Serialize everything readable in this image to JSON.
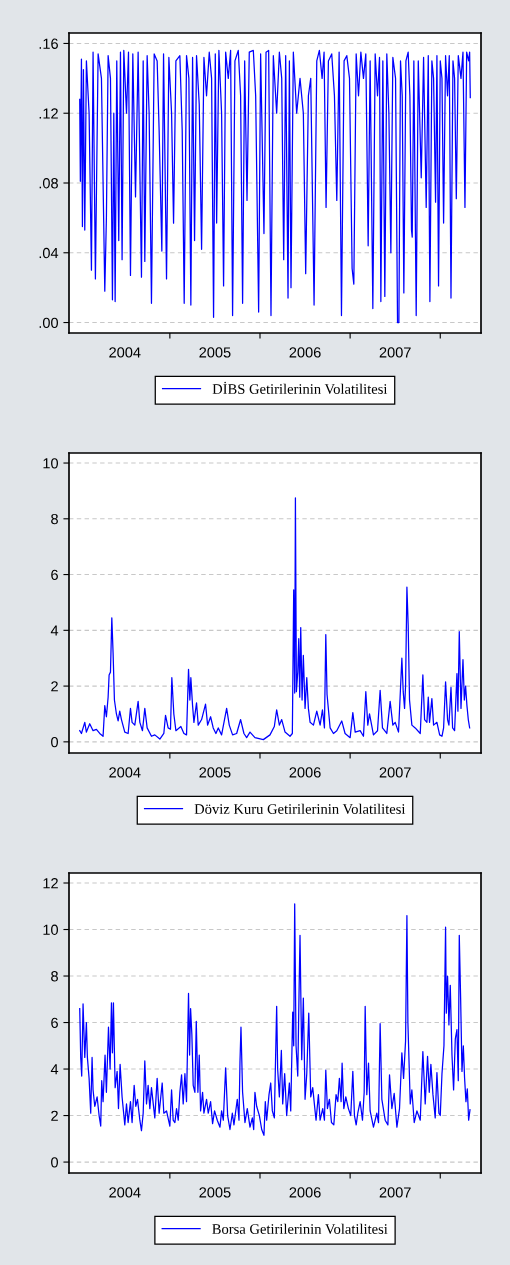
{
  "chart_data": [
    {
      "type": "line",
      "xlim": [
        2003.881,
        2008.452
      ],
      "ylim": [
        -0.006,
        0.166
      ],
      "yticks": [
        {
          "value": 0,
          "label": ".00"
        },
        {
          "value": 0.04,
          "label": ".04"
        },
        {
          "value": 0.08,
          "label": ".08"
        },
        {
          "value": 0.12,
          "label": ".12"
        },
        {
          "value": 0.16,
          "label": ".16"
        }
      ],
      "xticks": [
        {
          "value": 2004.5,
          "label": "2004"
        },
        {
          "value": 2005,
          "label": null
        },
        {
          "value": 2005.5,
          "label": "2005"
        },
        {
          "value": 2006,
          "label": null
        },
        {
          "value": 2006.5,
          "label": "2006"
        },
        {
          "value": 2007,
          "label": null
        },
        {
          "value": 2007.5,
          "label": "2007"
        },
        {
          "value": 2008,
          "label": null
        }
      ],
      "grid": "y",
      "legend": "bottom",
      "series": [
        {
          "name": "DİBS Getirilerinin Volatilitesi",
          "color": "#0000ff",
          "x": [
            2004.0,
            2004.007,
            2004.019,
            2004.03,
            2004.041,
            2004.056,
            2004.074,
            2004.104,
            2004.13,
            2004.148,
            2004.174,
            2004.204,
            2004.241,
            2004.278,
            2004.296,
            2004.315,
            2004.341,
            2004.363,
            2004.378,
            2004.393,
            2004.411,
            2004.433,
            2004.452,
            2004.47,
            2004.489,
            2004.519,
            2004.541,
            2004.563,
            2004.589,
            2004.619,
            2004.648,
            2004.685,
            2004.704,
            2004.722,
            2004.748,
            2004.77,
            2004.796,
            2004.826,
            2004.859,
            2004.881,
            2004.911,
            2004.93,
            2004.963,
            2004.989,
            2005.019,
            2005.041,
            2005.067,
            2005.111,
            2005.137,
            2005.159,
            2005.185,
            2005.211,
            2005.233,
            2005.252,
            2005.274,
            2005.296,
            2005.326,
            2005.352,
            2005.378,
            2005.407,
            2005.437,
            2005.463,
            2005.485,
            2005.504,
            2005.519,
            2005.544,
            2005.574,
            2005.596,
            2005.619,
            2005.648,
            2005.674,
            2005.696,
            2005.722,
            2005.759,
            2005.785,
            2005.807,
            2005.83,
            2005.856,
            2005.881,
            2005.926,
            2005.952,
            2005.985,
            2006.007,
            2006.044,
            2006.067,
            2006.096,
            2006.122,
            2006.148,
            2006.185,
            2006.215,
            2006.241,
            2006.263,
            2006.285,
            2006.311,
            2006.326,
            2006.344,
            2006.37,
            2006.407,
            2006.444,
            2006.481,
            2006.507,
            2006.537,
            2006.563,
            2006.6,
            2006.63,
            2006.659,
            2006.689,
            2006.711,
            2006.733,
            2006.759,
            2006.796,
            2006.826,
            2006.852,
            2006.878,
            2006.904,
            2006.933,
            2006.963,
            2006.993,
            2007.022,
            2007.041,
            2007.067,
            2007.093,
            2007.119,
            2007.148,
            2007.174,
            2007.2,
            2007.222,
            2007.252,
            2007.278,
            2007.304,
            2007.326,
            2007.341,
            2007.363,
            2007.385,
            2007.407,
            2007.43,
            2007.452,
            2007.474,
            2007.504,
            2007.526,
            2007.541,
            2007.559,
            2007.578,
            2007.596,
            2007.619,
            2007.644,
            2007.663,
            2007.681,
            2007.689,
            2007.707,
            2007.733,
            2007.756,
            2007.789,
            2007.815,
            2007.844,
            2007.867,
            2007.885,
            2007.907,
            2007.926,
            2007.948,
            2007.963,
            2007.981,
            2008.0,
            2008.019,
            2008.037,
            2008.059,
            2008.081,
            2008.1,
            2008.119,
            2008.141,
            2008.159,
            2008.178,
            2008.2,
            2008.23,
            2008.252,
            2008.274,
            2008.293,
            2008.315,
            2008.326,
            2008.333
          ],
          "values": [
            0.128,
            0.081,
            0.151,
            0.055,
            0.145,
            0.053,
            0.15,
            0.12,
            0.03,
            0.155,
            0.025,
            0.154,
            0.14,
            0.018,
            0.06,
            0.153,
            0.14,
            0.013,
            0.12,
            0.012,
            0.15,
            0.047,
            0.155,
            0.036,
            0.156,
            0.12,
            0.155,
            0.027,
            0.154,
            0.072,
            0.155,
            0.026,
            0.15,
            0.035,
            0.153,
            0.12,
            0.011,
            0.154,
            0.15,
            0.11,
            0.041,
            0.154,
            0.025,
            0.152,
            0.12,
            0.057,
            0.15,
            0.153,
            0.11,
            0.011,
            0.153,
            0.14,
            0.01,
            0.152,
            0.047,
            0.153,
            0.125,
            0.042,
            0.152,
            0.13,
            0.155,
            0.14,
            0.003,
            0.154,
            0.057,
            0.156,
            0.12,
            0.021,
            0.155,
            0.14,
            0.156,
            0.004,
            0.15,
            0.156,
            0.13,
            0.011,
            0.15,
            0.07,
            0.155,
            0.156,
            0.13,
            0.006,
            0.154,
            0.051,
            0.155,
            0.156,
            0.004,
            0.153,
            0.12,
            0.155,
            0.14,
            0.036,
            0.153,
            0.014,
            0.15,
            0.02,
            0.155,
            0.12,
            0.14,
            0.12,
            0.028,
            0.13,
            0.14,
            0.01,
            0.15,
            0.156,
            0.14,
            0.155,
            0.066,
            0.15,
            0.154,
            0.13,
            0.07,
            0.155,
            0.004,
            0.15,
            0.153,
            0.14,
            0.031,
            0.022,
            0.154,
            0.13,
            0.155,
            0.14,
            0.154,
            0.044,
            0.15,
            0.008,
            0.154,
            0.13,
            0.152,
            0.012,
            0.15,
            0.015,
            0.154,
            0.12,
            0.04,
            0.152,
            0.14,
            0.0,
            0.0,
            0.15,
            0.13,
            0.017,
            0.15,
            0.155,
            0.13,
            0.053,
            0.049,
            0.15,
            0.004,
            0.15,
            0.083,
            0.152,
            0.066,
            0.153,
            0.012,
            0.15,
            0.14,
            0.069,
            0.153,
            0.021,
            0.15,
            0.14,
            0.057,
            0.153,
            0.13,
            0.153,
            0.014,
            0.15,
            0.14,
            0.071,
            0.153,
            0.14,
            0.155,
            0.066,
            0.155,
            0.15,
            0.155,
            0.129
          ]
        }
      ]
    },
    {
      "type": "line",
      "xlim": [
        2003.881,
        2008.452
      ],
      "ylim": [
        -0.4,
        10.36
      ],
      "yticks": [
        0,
        2,
        4,
        6,
        8,
        10
      ],
      "xticks": [
        {
          "value": 2004.5,
          "label": "2004"
        },
        {
          "value": 2005,
          "label": null
        },
        {
          "value": 2005.5,
          "label": "2005"
        },
        {
          "value": 2006,
          "label": null
        },
        {
          "value": 2006.5,
          "label": "2006"
        },
        {
          "value": 2007,
          "label": null
        },
        {
          "value": 2007.5,
          "label": "2007"
        },
        {
          "value": 2008,
          "label": null
        }
      ],
      "grid": "y",
      "legend": "bottom",
      "series": [
        {
          "name": "Döviz Kuru Getirilerinin Volatilitesi",
          "color": "#0000ff",
          "x": [
            2004.0,
            2004.019,
            2004.056,
            2004.074,
            2004.111,
            2004.148,
            2004.185,
            2004.222,
            2004.259,
            2004.278,
            2004.296,
            2004.315,
            2004.326,
            2004.341,
            2004.356,
            2004.37,
            2004.385,
            2004.407,
            2004.426,
            2004.444,
            2004.463,
            2004.5,
            2004.537,
            2004.563,
            2004.581,
            2004.611,
            2004.648,
            2004.667,
            2004.696,
            2004.722,
            2004.748,
            2004.796,
            2004.833,
            2004.889,
            2004.933,
            2004.952,
            2004.981,
            2005.007,
            2005.022,
            2005.044,
            2005.067,
            2005.122,
            2005.156,
            2005.185,
            2005.207,
            2005.222,
            2005.233,
            2005.252,
            2005.267,
            2005.296,
            2005.315,
            2005.352,
            2005.396,
            2005.419,
            2005.452,
            2005.481,
            2005.511,
            2005.537,
            2005.574,
            2005.63,
            2005.659,
            2005.696,
            2005.741,
            2005.785,
            2005.822,
            2005.852,
            2005.889,
            2005.944,
            2006.037,
            2006.111,
            2006.159,
            2006.185,
            2006.215,
            2006.241,
            2006.278,
            2006.333,
            2006.359,
            2006.374,
            2006.385,
            2006.393,
            2006.404,
            2006.419,
            2006.43,
            2006.441,
            2006.452,
            2006.467,
            2006.481,
            2006.5,
            2006.519,
            2006.537,
            2006.556,
            2006.593,
            2006.63,
            2006.667,
            2006.693,
            2006.715,
            2006.73,
            2006.744,
            2006.778,
            2006.815,
            2006.852,
            2006.907,
            2006.944,
            2007.0,
            2007.03,
            2007.056,
            2007.111,
            2007.148,
            2007.174,
            2007.196,
            2007.215,
            2007.259,
            2007.304,
            2007.333,
            2007.359,
            2007.407,
            2007.444,
            2007.474,
            2007.5,
            2007.537,
            2007.574,
            2007.589,
            2007.604,
            2007.615,
            2007.63,
            2007.644,
            2007.659,
            2007.685,
            2007.722,
            2007.778,
            2007.807,
            2007.826,
            2007.852,
            2007.867,
            2007.881,
            2007.907,
            2007.926,
            2007.963,
            2007.993,
            2008.019,
            2008.037,
            2008.059,
            2008.081,
            2008.096,
            2008.119,
            2008.137,
            2008.159,
            2008.185,
            2008.196,
            2008.211,
            2008.23,
            2008.252,
            2008.267,
            2008.281,
            2008.296,
            2008.311,
            2008.326
          ],
          "values": [
            0.4,
            0.3,
            0.7,
            0.35,
            0.65,
            0.4,
            0.45,
            0.3,
            0.2,
            1.3,
            0.9,
            1.6,
            2.4,
            2.5,
            4.45,
            3.2,
            1.5,
            1.0,
            0.75,
            1.1,
            0.8,
            0.35,
            0.3,
            1.2,
            0.7,
            0.6,
            1.45,
            0.7,
            0.4,
            1.2,
            0.5,
            0.2,
            0.25,
            0.1,
            0.3,
            0.95,
            0.5,
            0.45,
            2.3,
            1.0,
            0.4,
            0.55,
            0.3,
            0.25,
            2.6,
            1.5,
            2.3,
            1.3,
            0.7,
            1.4,
            0.6,
            0.8,
            1.35,
            0.6,
            0.9,
            0.5,
            0.3,
            0.5,
            0.25,
            1.2,
            0.6,
            0.25,
            0.3,
            0.8,
            0.3,
            0.15,
            0.35,
            0.15,
            0.08,
            0.25,
            0.55,
            1.15,
            0.6,
            0.8,
            0.35,
            0.2,
            0.3,
            5.45,
            1.75,
            8.75,
            1.8,
            2.5,
            3.7,
            1.6,
            4.1,
            1.5,
            3.1,
            1.2,
            2.3,
            1.2,
            0.7,
            0.6,
            1.1,
            0.6,
            1.15,
            0.5,
            3.85,
            1.7,
            0.5,
            0.3,
            0.4,
            0.75,
            0.3,
            0.15,
            1.05,
            0.35,
            0.4,
            0.2,
            1.8,
            0.6,
            1.0,
            0.25,
            0.4,
            1.85,
            0.5,
            0.3,
            1.45,
            0.6,
            0.7,
            0.35,
            3.0,
            1.8,
            1.2,
            2.0,
            5.55,
            4.2,
            1.5,
            0.6,
            0.5,
            0.3,
            2.4,
            0.8,
            0.7,
            1.6,
            0.7,
            1.55,
            0.6,
            0.7,
            0.25,
            0.2,
            0.5,
            2.15,
            0.8,
            0.6,
            1.95,
            0.5,
            0.4,
            2.45,
            1.1,
            3.95,
            1.2,
            2.95,
            1.5,
            2.0,
            1.3,
            0.8,
            0.5
          ]
        }
      ]
    },
    {
      "type": "line",
      "xlim": [
        2003.881,
        2008.452
      ],
      "ylim": [
        -0.47,
        12.43
      ],
      "yticks": [
        0,
        2,
        4,
        6,
        8,
        10,
        12
      ],
      "xticks": [
        {
          "value": 2004.5,
          "label": "2004"
        },
        {
          "value": 2005,
          "label": null
        },
        {
          "value": 2005.5,
          "label": "2005"
        },
        {
          "value": 2006,
          "label": null
        },
        {
          "value": 2006.5,
          "label": "2006"
        },
        {
          "value": 2007,
          "label": null
        },
        {
          "value": 2007.5,
          "label": "2007"
        },
        {
          "value": 2008,
          "label": null
        }
      ],
      "grid": "y",
      "legend": "bottom",
      "series": [
        {
          "name": "Borsa Getirilerinin Volatilitesi",
          "color": "#0000ff",
          "x": [
            2004.0,
            2004.011,
            2004.022,
            2004.037,
            2004.056,
            2004.074,
            2004.085,
            2004.104,
            2004.122,
            2004.137,
            2004.148,
            2004.167,
            2004.193,
            2004.215,
            2004.233,
            2004.244,
            2004.259,
            2004.281,
            2004.296,
            2004.319,
            2004.337,
            2004.352,
            2004.363,
            2004.374,
            2004.393,
            2004.415,
            2004.43,
            2004.448,
            2004.47,
            2004.5,
            2004.519,
            2004.537,
            2004.563,
            2004.581,
            2004.604,
            2004.622,
            2004.641,
            2004.667,
            2004.685,
            2004.704,
            2004.722,
            2004.741,
            2004.759,
            2004.778,
            2004.796,
            2004.833,
            2004.859,
            2004.881,
            2004.915,
            2004.933,
            2004.963,
            2005.0,
            2005.019,
            2005.037,
            2005.056,
            2005.074,
            2005.093,
            2005.111,
            2005.13,
            2005.148,
            2005.167,
            2005.185,
            2005.207,
            2005.219,
            2005.23,
            2005.244,
            2005.259,
            2005.278,
            2005.293,
            2005.311,
            2005.326,
            2005.341,
            2005.363,
            2005.378,
            2005.407,
            2005.426,
            2005.452,
            2005.474,
            2005.496,
            2005.526,
            2005.556,
            2005.574,
            2005.593,
            2005.619,
            2005.641,
            2005.667,
            2005.693,
            2005.711,
            2005.748,
            2005.767,
            2005.778,
            2005.789,
            2005.807,
            2005.833,
            2005.859,
            2005.889,
            2005.915,
            2005.93,
            2005.944,
            2005.963,
            2005.993,
            2006.019,
            2006.044,
            2006.059,
            2006.074,
            2006.1,
            2006.119,
            2006.137,
            2006.159,
            2006.185,
            2006.196,
            2006.215,
            2006.237,
            2006.252,
            2006.274,
            2006.296,
            2006.326,
            2006.341,
            2006.363,
            2006.374,
            2006.385,
            2006.4,
            2006.419,
            2006.433,
            2006.444,
            2006.463,
            2006.481,
            2006.5,
            2006.519,
            2006.541,
            2006.563,
            2006.585,
            2006.611,
            2006.622,
            2006.648,
            2006.667,
            2006.696,
            2006.715,
            2006.73,
            2006.748,
            2006.77,
            2006.793,
            2006.819,
            2006.844,
            2006.863,
            2006.881,
            2006.9,
            2006.911,
            2006.93,
            2006.952,
            2006.981,
            2007.007,
            2007.03,
            2007.048,
            2007.067,
            2007.085,
            2007.111,
            2007.137,
            2007.156,
            2007.167,
            2007.185,
            2007.204,
            2007.222,
            2007.259,
            2007.296,
            2007.315,
            2007.333,
            2007.352,
            2007.389,
            2007.419,
            2007.437,
            2007.463,
            2007.489,
            2007.519,
            2007.548,
            2007.574,
            2007.593,
            2007.615,
            2007.63,
            2007.641,
            2007.667,
            2007.685,
            2007.711,
            2007.741,
            2007.778,
            2007.807,
            2007.833,
            2007.859,
            2007.878,
            2007.896,
            2007.919,
            2007.944,
            2007.963,
            2007.985,
            2008.0,
            2008.019,
            2008.041,
            2008.059,
            2008.067,
            2008.081,
            2008.096,
            2008.111,
            2008.13,
            2008.148,
            2008.167,
            2008.185,
            2008.2,
            2008.211,
            2008.226,
            2008.241,
            2008.256,
            2008.27,
            2008.285,
            2008.3,
            2008.315,
            2008.33
          ],
          "values": [
            6.6,
            4.5,
            3.7,
            6.8,
            4.5,
            6.0,
            4.5,
            3.6,
            2.1,
            4.5,
            3.1,
            2.4,
            2.8,
            2.0,
            1.55,
            3.5,
            2.6,
            4.6,
            3.0,
            5.8,
            4.0,
            6.85,
            4.7,
            6.85,
            3.2,
            3.9,
            2.3,
            4.2,
            2.8,
            1.6,
            2.5,
            1.7,
            2.6,
            1.7,
            3.3,
            2.4,
            2.7,
            1.8,
            1.35,
            2.1,
            4.35,
            2.5,
            3.3,
            2.3,
            3.2,
            1.9,
            3.6,
            2.1,
            3.4,
            2.1,
            2.2,
            1.55,
            3.1,
            1.8,
            1.7,
            2.3,
            1.8,
            3.0,
            3.75,
            2.5,
            3.8,
            2.6,
            7.25,
            4.6,
            6.6,
            5.5,
            3.3,
            3.0,
            6.05,
            3.0,
            4.6,
            2.2,
            3.0,
            2.1,
            2.7,
            2.1,
            2.6,
            1.65,
            2.2,
            1.8,
            1.5,
            2.2,
            1.8,
            4.05,
            2.0,
            1.4,
            2.1,
            1.6,
            2.7,
            1.8,
            4.3,
            5.8,
            3.0,
            1.7,
            2.3,
            1.5,
            1.9,
            1.4,
            3.0,
            2.4,
            2.0,
            1.4,
            1.15,
            2.6,
            1.8,
            2.9,
            3.4,
            2.2,
            1.9,
            6.7,
            4.0,
            2.8,
            4.8,
            2.5,
            3.8,
            2.0,
            3.4,
            2.2,
            6.45,
            5.0,
            11.1,
            5.0,
            3.7,
            7.2,
            9.75,
            4.4,
            7.05,
            2.7,
            3.8,
            6.4,
            2.8,
            3.2,
            2.2,
            1.8,
            2.9,
            1.8,
            2.3,
            1.8,
            3.95,
            2.3,
            2.7,
            1.7,
            1.6,
            2.9,
            2.6,
            3.6,
            2.6,
            4.25,
            2.3,
            2.8,
            2.3,
            2.0,
            3.9,
            2.0,
            1.6,
            2.1,
            2.6,
            1.8,
            3.0,
            6.7,
            2.9,
            4.25,
            2.2,
            1.5,
            2.1,
            1.7,
            5.95,
            2.7,
            1.8,
            1.6,
            3.75,
            2.3,
            2.95,
            1.5,
            2.3,
            4.7,
            3.6,
            5.2,
            10.6,
            6.0,
            2.5,
            3.1,
            1.7,
            2.2,
            1.8,
            4.75,
            2.5,
            4.55,
            3.0,
            4.2,
            2.9,
            1.9,
            3.85,
            2.1,
            2.0,
            3.8,
            5.0,
            10.1,
            6.4,
            8.0,
            5.9,
            7.6,
            4.6,
            3.1,
            5.3,
            5.7,
            3.5,
            9.75,
            7.05,
            3.9,
            5.0,
            3.6,
            2.6,
            3.15,
            1.8,
            2.25
          ]
        }
      ]
    }
  ]
}
